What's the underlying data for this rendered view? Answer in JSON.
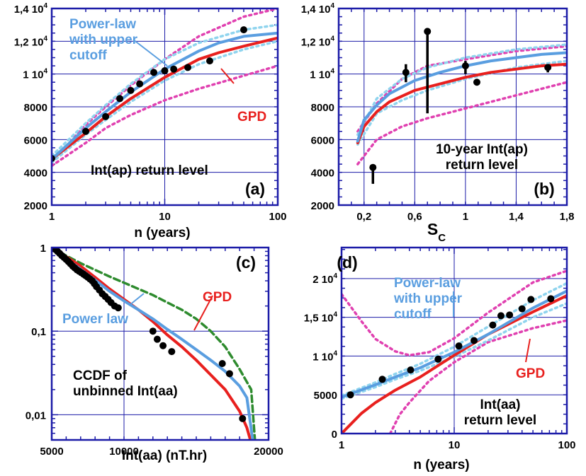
{
  "colors": {
    "gpd": "#e8201e",
    "powerlaw": "#5a9ee0",
    "powerlaw_band": "#8fd4ee",
    "gpd_band": "#e040b0",
    "extra": "#2e8b2e",
    "frame": "#1c1ca8",
    "grid": "#1c1ca8",
    "points": "#000000"
  },
  "chart_data": [
    {
      "id": "a",
      "tag": "(a)",
      "type": "scatter",
      "xscale": "log",
      "xlim": [
        1,
        100
      ],
      "ylim": [
        2000,
        14000
      ],
      "xticks": [
        {
          "v": 1,
          "label": "1"
        },
        {
          "v": 10,
          "label": "10"
        },
        {
          "v": 100,
          "label": "100"
        }
      ],
      "yticks": [
        {
          "v": 2000,
          "base": "2000",
          "exp": ""
        },
        {
          "v": 4000,
          "base": "4000",
          "exp": ""
        },
        {
          "v": 6000,
          "base": "6000",
          "exp": ""
        },
        {
          "v": 8000,
          "base": "8000",
          "exp": ""
        },
        {
          "v": 10000,
          "base": "1 10",
          "exp": "4"
        },
        {
          "v": 12000,
          "base": "1,2 10",
          "exp": "4"
        },
        {
          "v": 14000,
          "base": "1,4 10",
          "exp": "4"
        }
      ],
      "xlabel": "n (years)",
      "ylabel": "",
      "annotations": [
        {
          "key": "pl",
          "lines": [
            "Power-law",
            "with upper",
            "cutoff"
          ],
          "color": "powerlaw"
        },
        {
          "key": "gpd",
          "lines": [
            "GPD"
          ],
          "color": "gpd"
        },
        {
          "key": "title",
          "lines": [
            "Int(ap) return level"
          ],
          "color": "text"
        }
      ],
      "series": [
        {
          "role": "points",
          "x": [
            1,
            2,
            3,
            4,
            5,
            6,
            8,
            10,
            12,
            16,
            25,
            50
          ],
          "y": [
            4850,
            6500,
            7400,
            8500,
            9000,
            9400,
            10100,
            10200,
            10300,
            10400,
            10800,
            12700
          ]
        },
        {
          "role": "gpd",
          "x": [
            1,
            2,
            3,
            5,
            10,
            20,
            30,
            50,
            100
          ],
          "y": [
            4800,
            6400,
            7400,
            8500,
            9800,
            10900,
            11300,
            11700,
            12200
          ]
        },
        {
          "role": "gpd_band",
          "x": [
            1,
            2,
            3,
            5,
            10,
            20,
            50,
            100
          ],
          "y": [
            4400,
            5800,
            6700,
            7500,
            8400,
            9100,
            9900,
            10500
          ]
        },
        {
          "role": "gpd_band",
          "x": [
            1,
            2,
            3,
            5,
            10,
            20,
            50,
            100
          ],
          "y": [
            4600,
            6900,
            8000,
            9300,
            10900,
            12300,
            13500,
            14000
          ]
        },
        {
          "role": "powerlaw",
          "x": [
            1,
            2,
            3,
            5,
            10,
            20,
            30,
            50,
            100
          ],
          "y": [
            4800,
            6700,
            7700,
            8900,
            10300,
            11400,
            11900,
            12300,
            12500
          ]
        },
        {
          "role": "powerlaw_band",
          "x": [
            1,
            2,
            3,
            5,
            10,
            20,
            50,
            100
          ],
          "y": [
            4600,
            6300,
            7200,
            8300,
            9600,
            10600,
            11500,
            12000
          ]
        },
        {
          "role": "powerlaw_band",
          "x": [
            1,
            2,
            3,
            5,
            10,
            20,
            50,
            100
          ],
          "y": [
            5000,
            7000,
            8100,
            9400,
            10900,
            11900,
            12700,
            13000
          ]
        }
      ]
    },
    {
      "id": "b",
      "tag": "(b)",
      "type": "scatter",
      "xscale": "linear",
      "xlim": [
        0,
        1.8
      ],
      "ylim": [
        2000,
        14000
      ],
      "xticks": [
        {
          "v": 0.2,
          "label": "0,2"
        },
        {
          "v": 0.6,
          "label": "0,6"
        },
        {
          "v": 1.0,
          "label": "1"
        },
        {
          "v": 1.4,
          "label": "1,4"
        },
        {
          "v": 1.8,
          "label": "1,8"
        }
      ],
      "yticks": [
        {
          "v": 2000,
          "base": "2000",
          "exp": ""
        },
        {
          "v": 4000,
          "base": "4000",
          "exp": ""
        },
        {
          "v": 6000,
          "base": "6000",
          "exp": ""
        },
        {
          "v": 8000,
          "base": "8000",
          "exp": ""
        },
        {
          "v": 10000,
          "base": "1 10",
          "exp": "4"
        },
        {
          "v": 12000,
          "base": "1,2 10",
          "exp": "4"
        },
        {
          "v": 14000,
          "base": "1,4 10",
          "exp": "4"
        }
      ],
      "xlabel": "S",
      "xlabel_sub": "C",
      "ylabel": "",
      "annotations": [
        {
          "key": "title",
          "lines": [
            "10-year Int(ap)",
            "return level"
          ],
          "color": "text"
        }
      ],
      "series": [
        {
          "role": "points_err",
          "x": [
            0.27,
            0.53,
            0.7,
            1.0,
            1.09,
            1.65
          ],
          "y": [
            4300,
            10100,
            12600,
            10500,
            9500,
            10400
          ],
          "ylo": [
            3300,
            9500,
            7600,
            10000,
            9400,
            10100
          ],
          "yhi": [
            4300,
            10600,
            12600,
            10800,
            9600,
            10500
          ]
        },
        {
          "role": "gpd",
          "x": [
            0.15,
            0.2,
            0.3,
            0.4,
            0.6,
            0.8,
            1.0,
            1.2,
            1.4,
            1.6,
            1.8
          ],
          "y": [
            5800,
            6800,
            7700,
            8300,
            9000,
            9400,
            9800,
            10100,
            10300,
            10500,
            10600
          ]
        },
        {
          "role": "gpd_band",
          "x": [
            0.15,
            0.3,
            0.5,
            0.7,
            1.0,
            1.4,
            1.8
          ],
          "y": [
            4500,
            6000,
            6800,
            7300,
            7900,
            8700,
            9500
          ]
        },
        {
          "role": "gpd_band",
          "x": [
            0.15,
            0.3,
            0.5,
            0.7,
            1.0,
            1.4,
            1.8
          ],
          "y": [
            6500,
            8200,
            9700,
            10500,
            10900,
            11400,
            11700
          ]
        },
        {
          "role": "powerlaw",
          "x": [
            0.15,
            0.2,
            0.3,
            0.4,
            0.6,
            0.8,
            1.0,
            1.2,
            1.4,
            1.6,
            1.8
          ],
          "y": [
            5900,
            7200,
            8100,
            8800,
            9600,
            10100,
            10500,
            10800,
            11000,
            11200,
            11300
          ]
        },
        {
          "role": "powerlaw_band",
          "x": [
            0.15,
            0.3,
            0.5,
            0.7,
            1.0,
            1.4,
            1.8
          ],
          "y": [
            5700,
            7600,
            8400,
            9000,
            9700,
            10400,
            10800
          ]
        },
        {
          "role": "powerlaw_band",
          "x": [
            0.15,
            0.3,
            0.5,
            0.7,
            1.0,
            1.4,
            1.8
          ],
          "y": [
            6300,
            8500,
            9700,
            10400,
            11000,
            11500,
            11800
          ]
        }
      ]
    },
    {
      "id": "c",
      "tag": "(c)",
      "type": "line",
      "yscale": "log",
      "xlim": [
        5000,
        20000
      ],
      "ylim": [
        0.005,
        1
      ],
      "xticks": [
        {
          "v": 5000,
          "label": "5000"
        },
        {
          "v": 10000,
          "label": "10000"
        },
        {
          "v": 20000,
          "label": "20000"
        }
      ],
      "yticks": [
        {
          "v": 1,
          "base": "1",
          "exp": ""
        },
        {
          "v": 0.1,
          "base": "0,1",
          "exp": ""
        },
        {
          "v": 0.01,
          "base": "0,01",
          "exp": ""
        }
      ],
      "xlabel": "Int(aa)   (nT.hr)",
      "ylabel": "",
      "annotations": [
        {
          "key": "gpd",
          "lines": [
            "GPD"
          ],
          "color": "gpd"
        },
        {
          "key": "pl",
          "lines": [
            "Power law"
          ],
          "color": "powerlaw"
        },
        {
          "key": "title",
          "lines": [
            "CCDF of",
            "unbinned Int(aa)"
          ],
          "color": "text"
        }
      ],
      "series": [
        {
          "role": "points",
          "x": [
            5100,
            5250,
            5400,
            5550,
            5700,
            5850,
            6000,
            6150,
            6300,
            6450,
            6600,
            6750,
            6900,
            7050,
            7200,
            7350,
            7500,
            7650,
            7800,
            7950,
            8100,
            8300,
            8500,
            8700,
            8900,
            9100,
            9350,
            9600,
            12000,
            12300,
            12700,
            13300,
            16800,
            17300,
            18200
          ],
          "y": [
            0.99,
            0.95,
            0.9,
            0.85,
            0.8,
            0.76,
            0.72,
            0.68,
            0.64,
            0.6,
            0.57,
            0.54,
            0.52,
            0.5,
            0.48,
            0.46,
            0.44,
            0.42,
            0.4,
            0.37,
            0.34,
            0.31,
            0.28,
            0.26,
            0.24,
            0.22,
            0.2,
            0.19,
            0.1,
            0.08,
            0.067,
            0.057,
            0.041,
            0.031,
            0.009
          ]
        },
        {
          "role": "gpd",
          "x": [
            5000,
            6000,
            7000,
            8000,
            9000,
            10000,
            11000,
            12000,
            13000,
            14000,
            15000,
            16000,
            17000,
            18000,
            18500,
            18900
          ],
          "y": [
            1,
            0.78,
            0.6,
            0.44,
            0.32,
            0.24,
            0.18,
            0.13,
            0.09,
            0.065,
            0.045,
            0.03,
            0.02,
            0.011,
            0.007,
            0.004
          ]
        },
        {
          "role": "powerlaw",
          "x": [
            5000,
            6000,
            7000,
            8000,
            9000,
            10000,
            11000,
            12000,
            13000,
            14000,
            15000,
            16000,
            17000,
            18000,
            18500,
            18900
          ],
          "y": [
            1,
            0.74,
            0.55,
            0.41,
            0.3,
            0.23,
            0.18,
            0.14,
            0.105,
            0.08,
            0.06,
            0.045,
            0.033,
            0.022,
            0.016,
            0.005
          ]
        },
        {
          "role": "extra",
          "x": [
            5000,
            6000,
            7000,
            8000,
            9000,
            10000,
            11000,
            12000,
            13000,
            14000,
            15000,
            16000,
            17000,
            18000,
            18800,
            19100
          ],
          "y": [
            1,
            0.8,
            0.65,
            0.54,
            0.45,
            0.38,
            0.32,
            0.27,
            0.22,
            0.18,
            0.14,
            0.1,
            0.065,
            0.035,
            0.02,
            0.004
          ]
        }
      ]
    },
    {
      "id": "d",
      "tag": "(d)",
      "type": "scatter",
      "xscale": "log",
      "xlim": [
        1,
        100
      ],
      "ylim": [
        0,
        24000
      ],
      "xticks": [
        {
          "v": 1,
          "label": "1"
        },
        {
          "v": 10,
          "label": "10"
        },
        {
          "v": 100,
          "label": "100"
        }
      ],
      "yticks": [
        {
          "v": 0,
          "base": "0",
          "exp": ""
        },
        {
          "v": 5000,
          "base": "5000",
          "exp": ""
        },
        {
          "v": 10000,
          "base": "1 10",
          "exp": "4"
        },
        {
          "v": 15000,
          "base": "1,5 10",
          "exp": "4"
        },
        {
          "v": 20000,
          "base": "2 10",
          "exp": "4"
        }
      ],
      "xlabel": "n (years)",
      "ylabel": "",
      "annotations": [
        {
          "key": "pl",
          "lines": [
            "Power-law",
            "with upper",
            "cutoff"
          ],
          "color": "powerlaw"
        },
        {
          "key": "gpd",
          "lines": [
            "GPD"
          ],
          "color": "gpd"
        },
        {
          "key": "title",
          "lines": [
            "Int(aa)",
            "return level"
          ],
          "color": "text"
        }
      ],
      "series": [
        {
          "role": "points",
          "x": [
            1.2,
            2.3,
            4.1,
            7.2,
            11,
            15,
            22,
            26,
            31,
            40,
            48,
            72
          ],
          "y": [
            5000,
            7000,
            8200,
            9600,
            11300,
            12000,
            14000,
            15200,
            15300,
            16100,
            17300,
            17400
          ]
        },
        {
          "role": "gpd",
          "x": [
            1,
            1.5,
            2,
            3,
            5,
            10,
            20,
            50,
            100
          ],
          "y": [
            0,
            2600,
            4000,
            5600,
            7300,
            10100,
            12800,
            15700,
            17800
          ]
        },
        {
          "role": "gpd_band",
          "x": [
            1,
            1.5,
            2,
            3,
            4,
            6,
            10,
            20,
            50,
            100
          ],
          "y": [
            18000,
            14500,
            12200,
            10600,
            10100,
            10500,
            12300,
            15600,
            19500,
            21000
          ]
        },
        {
          "role": "gpd_band",
          "x": [
            2.7,
            3.3,
            4,
            6,
            10,
            20,
            50,
            100
          ],
          "y": [
            0,
            2500,
            4000,
            6800,
            9200,
            11800,
            13600,
            14600
          ]
        },
        {
          "role": "powerlaw",
          "x": [
            1,
            2,
            3,
            5,
            10,
            20,
            50,
            100
          ],
          "y": [
            4700,
            6300,
            7300,
            8500,
            10500,
            12800,
            16200,
            18400
          ]
        },
        {
          "role": "powerlaw_band",
          "x": [
            1,
            2,
            3,
            5,
            10,
            20,
            50,
            100
          ],
          "y": [
            4500,
            6000,
            7000,
            8100,
            9900,
            12000,
            15000,
            16800
          ]
        },
        {
          "role": "powerlaw_band",
          "x": [
            1,
            2,
            3,
            5,
            10,
            20,
            50,
            100
          ],
          "y": [
            4900,
            6600,
            7700,
            9000,
            11200,
            13800,
            17200,
            19400
          ]
        }
      ]
    }
  ]
}
